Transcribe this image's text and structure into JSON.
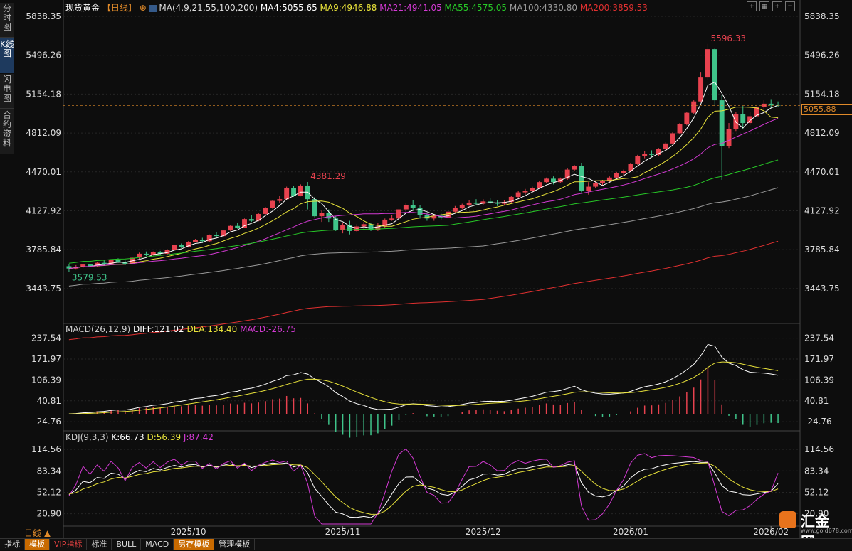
{
  "side_tabs": [
    "分时图",
    "K线图",
    "闪电图",
    "合约资料"
  ],
  "header": {
    "name": "现货黄金",
    "period": "【日线】",
    "ma_label": "MA(4,9,21,55,100,200)",
    "items": [
      {
        "text": "MA4:5055.65",
        "color": "#ffffff"
      },
      {
        "text": "MA9:4946.88",
        "color": "#e8e23a"
      },
      {
        "text": "MA21:4941.05",
        "color": "#d43ad4"
      },
      {
        "text": "MA55:4575.05",
        "color": "#27c727"
      },
      {
        "text": "MA100:4330.80",
        "color": "#9a9a9a"
      },
      {
        "text": "MA200:3859.53",
        "color": "#e03030"
      }
    ]
  },
  "macd_header": [
    {
      "text": "MACD(26,12,9)",
      "color": "#cccccc"
    },
    {
      "text": "DIFF:121.02",
      "color": "#ffffff"
    },
    {
      "text": "DEA:134.40",
      "color": "#e8e23a"
    },
    {
      "text": "MACD:-26.75",
      "color": "#d43ad4"
    }
  ],
  "kdj_header": [
    {
      "text": "KDJ(9,3,3)",
      "color": "#cccccc"
    },
    {
      "text": "K:66.73",
      "color": "#ffffff"
    },
    {
      "text": "D:56.39",
      "color": "#e8e23a"
    },
    {
      "text": "J:87.42",
      "color": "#d43ad4"
    }
  ],
  "current_price": "5055.88",
  "annotations": {
    "high": "5596.33",
    "mid_high": "4381.29",
    "low": "3579.53"
  },
  "colors": {
    "up": "#e8424f",
    "down": "#3fc48a",
    "bg": "#0d0d0d",
    "grid": "#262626"
  },
  "bottom_toolbar": {
    "period_label": "日线 ▲",
    "tabs": [
      "指标",
      "模板",
      "VIP指标",
      "标准",
      "BULL",
      "MACD",
      "另存模板",
      "管理模板"
    ]
  },
  "logo": {
    "text": "汇金网",
    "url": "www.gold678.com"
  },
  "chart_data": [
    {
      "type": "candlestick",
      "title": "现货黄金 日线",
      "x_ticks": [
        "2025/10",
        "2025/11",
        "2025/12",
        "2026/01",
        "2026/02"
      ],
      "y_ticks": [
        5838.35,
        5496.26,
        5154.18,
        4812.09,
        4470.01,
        4127.92,
        3785.84,
        3443.75
      ],
      "ylim": [
        3155,
        5870
      ],
      "ohlc": [
        [
          3640,
          3655,
          3620,
          3590
        ],
        [
          3620,
          3650,
          3635,
          3610
        ],
        [
          3635,
          3660,
          3655,
          3625
        ],
        [
          3655,
          3670,
          3640,
          3630
        ],
        [
          3640,
          3680,
          3670,
          3635
        ],
        [
          3670,
          3690,
          3660,
          3650
        ],
        [
          3660,
          3700,
          3695,
          3655
        ],
        [
          3695,
          3710,
          3680,
          3670
        ],
        [
          3680,
          3690,
          3660,
          3650
        ],
        [
          3660,
          3720,
          3715,
          3655
        ],
        [
          3715,
          3760,
          3750,
          3705
        ],
        [
          3750,
          3770,
          3740,
          3730
        ],
        [
          3740,
          3770,
          3765,
          3735
        ],
        [
          3765,
          3775,
          3750,
          3740
        ],
        [
          3750,
          3790,
          3785,
          3745
        ],
        [
          3785,
          3830,
          3825,
          3780
        ],
        [
          3825,
          3840,
          3810,
          3800
        ],
        [
          3810,
          3860,
          3855,
          3805
        ],
        [
          3855,
          3880,
          3870,
          3850
        ],
        [
          3870,
          3890,
          3860,
          3845
        ],
        [
          3860,
          3920,
          3915,
          3855
        ],
        [
          3915,
          3940,
          3905,
          3895
        ],
        [
          3905,
          3960,
          3955,
          3900
        ],
        [
          3955,
          4000,
          3995,
          3950
        ],
        [
          3995,
          4020,
          3980,
          3970
        ],
        [
          3980,
          4060,
          4055,
          3975
        ],
        [
          4055,
          4090,
          4040,
          4030
        ],
        [
          4040,
          4110,
          4100,
          4035
        ],
        [
          4100,
          4160,
          4150,
          4095
        ],
        [
          4150,
          4220,
          4215,
          4145
        ],
        [
          4215,
          4260,
          4230,
          4200
        ],
        [
          4230,
          4340,
          4330,
          4225
        ],
        [
          4330,
          4345,
          4260,
          4250
        ],
        [
          4260,
          4360,
          4350,
          4255
        ],
        [
          4350,
          4381,
          4230,
          4140
        ],
        [
          4230,
          4250,
          4080,
          4070
        ],
        [
          4080,
          4130,
          4110,
          4030
        ],
        [
          4110,
          4140,
          4060,
          4030
        ],
        [
          4060,
          4080,
          3960,
          3950
        ],
        [
          3960,
          4020,
          4000,
          3930
        ],
        [
          4000,
          4040,
          3950,
          3920
        ],
        [
          3950,
          4010,
          3990,
          3940
        ],
        [
          3990,
          4030,
          4010,
          3970
        ],
        [
          4010,
          4020,
          3960,
          3950
        ],
        [
          3960,
          4020,
          3990,
          3950
        ],
        [
          3990,
          4060,
          4050,
          3980
        ],
        [
          4050,
          4090,
          4060,
          4040
        ],
        [
          4060,
          4150,
          4140,
          4055
        ],
        [
          4140,
          4200,
          4180,
          4120
        ],
        [
          4180,
          4220,
          4150,
          4130
        ],
        [
          4150,
          4180,
          4090,
          4060
        ],
        [
          4090,
          4110,
          4060,
          4040
        ],
        [
          4060,
          4100,
          4085,
          4040
        ],
        [
          4085,
          4110,
          4070,
          4050
        ],
        [
          4070,
          4130,
          4120,
          4060
        ],
        [
          4120,
          4170,
          4150,
          4110
        ],
        [
          4150,
          4190,
          4180,
          4140
        ],
        [
          4180,
          4220,
          4200,
          4170
        ],
        [
          4200,
          4230,
          4190,
          4180
        ],
        [
          4190,
          4230,
          4210,
          4180
        ],
        [
          4210,
          4240,
          4200,
          4190
        ],
        [
          4200,
          4220,
          4190,
          4170
        ],
        [
          4190,
          4220,
          4205,
          4180
        ],
        [
          4205,
          4260,
          4250,
          4200
        ],
        [
          4250,
          4300,
          4290,
          4240
        ],
        [
          4290,
          4320,
          4300,
          4270
        ],
        [
          4300,
          4340,
          4330,
          4290
        ],
        [
          4330,
          4390,
          4380,
          4320
        ],
        [
          4380,
          4420,
          4410,
          4370
        ],
        [
          4410,
          4430,
          4380,
          4360
        ],
        [
          4380,
          4420,
          4410,
          4370
        ],
        [
          4410,
          4500,
          4490,
          4400
        ],
        [
          4490,
          4530,
          4520,
          4480
        ],
        [
          4520,
          4550,
          4300,
          4290
        ],
        [
          4300,
          4380,
          4340,
          4270
        ],
        [
          4340,
          4390,
          4370,
          4330
        ],
        [
          4370,
          4400,
          4390,
          4350
        ],
        [
          4390,
          4430,
          4420,
          4380
        ],
        [
          4420,
          4470,
          4460,
          4410
        ],
        [
          4460,
          4490,
          4480,
          4440
        ],
        [
          4480,
          4550,
          4540,
          4470
        ],
        [
          4540,
          4620,
          4610,
          4530
        ],
        [
          4610,
          4650,
          4630,
          4590
        ],
        [
          4630,
          4660,
          4620,
          4600
        ],
        [
          4620,
          4680,
          4670,
          4610
        ],
        [
          4670,
          4730,
          4720,
          4660
        ],
        [
          4720,
          4820,
          4810,
          4710
        ],
        [
          4810,
          4900,
          4890,
          4800
        ],
        [
          4890,
          5000,
          4990,
          4880
        ],
        [
          4990,
          5100,
          5090,
          4980
        ],
        [
          5090,
          5350,
          5300,
          5080
        ],
        [
          5300,
          5596,
          5550,
          5280
        ],
        [
          5550,
          5560,
          5100,
          5050
        ],
        [
          5100,
          5150,
          4700,
          4400
        ],
        [
          4700,
          4900,
          4850,
          4680
        ],
        [
          4850,
          5000,
          4980,
          4830
        ],
        [
          4980,
          5050,
          4900,
          4850
        ],
        [
          4900,
          5000,
          4960,
          4880
        ],
        [
          4960,
          5050,
          5040,
          4950
        ],
        [
          5040,
          5100,
          5070,
          5010
        ],
        [
          5070,
          5110,
          5060,
          5030
        ],
        [
          5060,
          5090,
          5055,
          5040
        ]
      ],
      "ma_series": [
        "MA4",
        "MA9",
        "MA21",
        "MA55",
        "MA100",
        "MA200"
      ],
      "ma_last": [
        5055.65,
        4946.88,
        4941.05,
        4575.05,
        4330.8,
        3859.53
      ]
    },
    {
      "type": "bar_line",
      "title": "MACD(26,12,9)",
      "y_ticks": [
        237.54,
        171.97,
        106.39,
        40.81,
        -24.76
      ],
      "ylim": [
        -40,
        250
      ],
      "series": [
        {
          "name": "DIFF",
          "last": 121.02
        },
        {
          "name": "DEA",
          "last": 134.4
        },
        {
          "name": "MACD",
          "last": -26.75
        }
      ]
    },
    {
      "type": "line",
      "title": "KDJ(9,3,3)",
      "y_ticks": [
        114.56,
        83.34,
        52.12,
        20.9
      ],
      "ylim": [
        5,
        125
      ],
      "series": [
        {
          "name": "K",
          "last": 66.73
        },
        {
          "name": "D",
          "last": 56.39
        },
        {
          "name": "J",
          "last": 87.42
        }
      ]
    }
  ]
}
